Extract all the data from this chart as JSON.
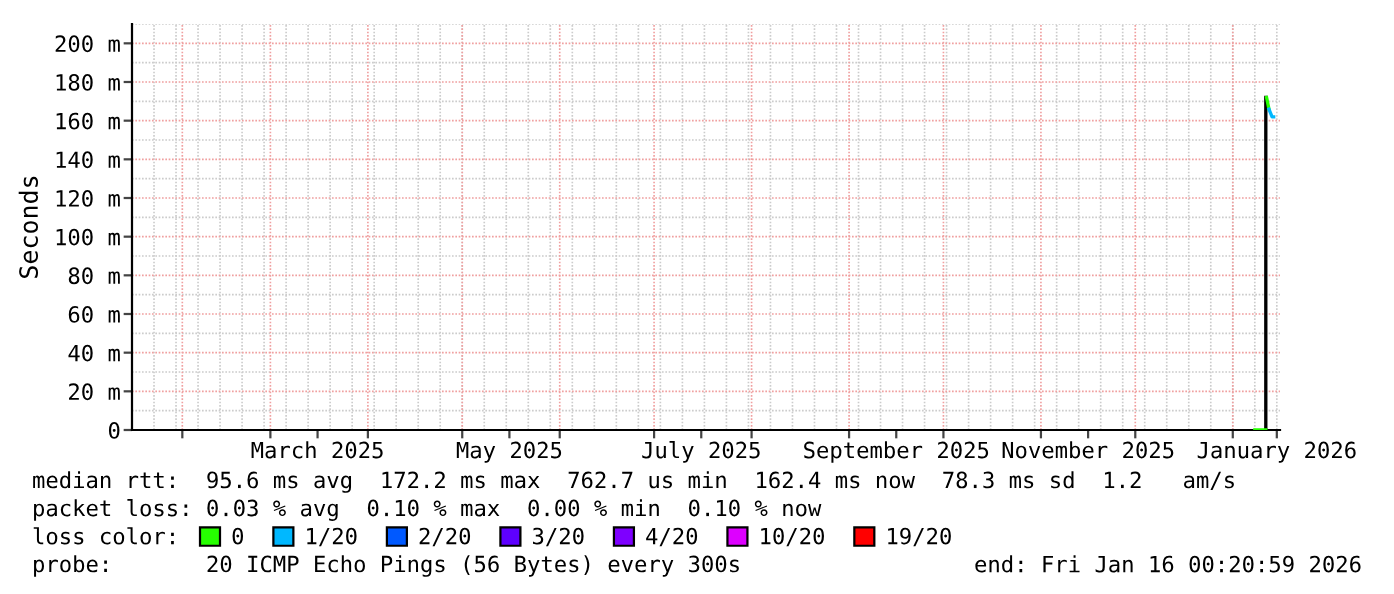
{
  "chart_data": {
    "type": "line",
    "ylabel": "Seconds",
    "legend_title": "loss color:",
    "legend": "bottom",
    "grid": true,
    "marker": "none",
    "line_style": "solid",
    "xlim": [
      "2025-01-16",
      "2026-01-16T00:20"
    ],
    "xticks": [
      {
        "value": "2025-02-01",
        "label": null
      },
      {
        "value": "2025-03-01",
        "label": null
      },
      {
        "value": "2025-03-16",
        "label": "March 2025"
      },
      {
        "value": "2025-04-01",
        "label": null
      },
      {
        "value": "2025-05-01",
        "label": null
      },
      {
        "value": "2025-05-16",
        "label": "May 2025"
      },
      {
        "value": "2025-06-01",
        "label": null
      },
      {
        "value": "2025-07-01",
        "label": null
      },
      {
        "value": "2025-07-16",
        "label": "July 2025"
      },
      {
        "value": "2025-08-01",
        "label": null
      },
      {
        "value": "2025-09-01",
        "label": null
      },
      {
        "value": "2025-09-16",
        "label": "September 2025"
      },
      {
        "value": "2025-10-01",
        "label": null
      },
      {
        "value": "2025-11-01",
        "label": null
      },
      {
        "value": "2025-11-16",
        "label": "November 2025"
      },
      {
        "value": "2025-12-01",
        "label": null
      },
      {
        "value": "2026-01-01",
        "label": null
      },
      {
        "value": "2026-01-15",
        "label": "January 2026"
      }
    ],
    "ylim": [
      0,
      210
    ],
    "yticks": [
      {
        "value": 0,
        "label": "0"
      },
      {
        "value": 20,
        "label": "20 m"
      },
      {
        "value": 40,
        "label": "40 m"
      },
      {
        "value": 60,
        "label": "60 m"
      },
      {
        "value": 80,
        "label": "80 m"
      },
      {
        "value": 100,
        "label": "100 m"
      },
      {
        "value": 120,
        "label": "120 m"
      },
      {
        "value": 140,
        "label": "140 m"
      },
      {
        "value": 160,
        "label": "160 m"
      },
      {
        "value": 180,
        "label": "180 m"
      },
      {
        "value": 200,
        "label": "200 m"
      }
    ],
    "series": [
      {
        "color": "#000000",
        "x": [
          "2026-01-11T12:00",
          "2026-01-11T12:00"
        ],
        "values": [
          0,
          172
        ]
      },
      {
        "name": "0",
        "color": "#26ff00",
        "x": [
          "2026-01-08",
          "2026-01-11T12:00",
          "2026-01-11T15:00",
          "2026-01-11T18:00",
          "2026-01-12T12:00"
        ],
        "values": [
          0,
          0,
          null,
          172,
          166
        ]
      },
      {
        "name": "1/20",
        "color": "#00b8ff",
        "x": [
          "2026-01-12T12:00",
          "2026-01-13T12:00",
          "2026-01-14"
        ],
        "values": [
          166,
          162,
          162
        ]
      },
      {
        "name": "2/20",
        "color": "#0059ff"
      },
      {
        "name": "3/20",
        "color": "#5e00ff"
      },
      {
        "name": "4/20",
        "color": "#7e00ff"
      },
      {
        "name": "10/20",
        "color": "#dd00ff"
      },
      {
        "name": "19/20",
        "color": "#ff0000"
      }
    ],
    "annotations": [
      "median rtt:  95.6 ms avg  172.2 ms max  762.7 us min  162.4 ms now  78.3 ms sd  1.2   am/s",
      "packet loss: 0.03 % avg  0.10 % max  0.00 % min  0.10 % now",
      "probe:       20 ICMP Echo Pings (56 Bytes) every 300s",
      "end: Fri Jan 16 00:20:59 2026"
    ]
  }
}
